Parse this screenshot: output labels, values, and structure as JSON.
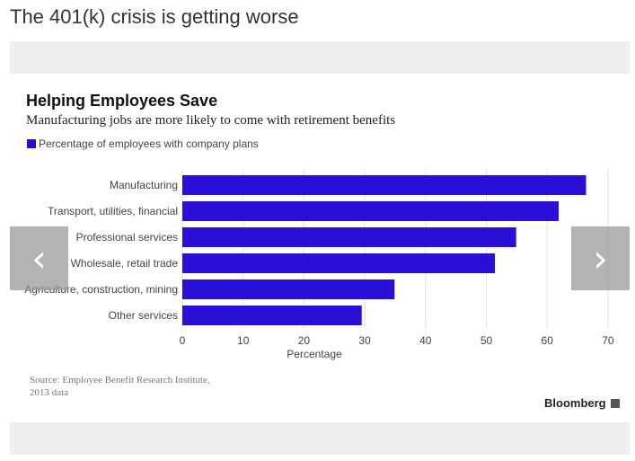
{
  "headline": "The 401(k) crisis is getting worse",
  "nav": {
    "prev_glyph": "‹",
    "next_glyph": "›"
  },
  "source": "Source: Employee Benefit Research Institute,\n2013 data",
  "brand": {
    "name": "Bloomberg"
  },
  "colors": {
    "bar": "#2a0fd6",
    "grid": "#e3e3e3",
    "band": "#efefef"
  },
  "chart_data": {
    "type": "bar",
    "orientation": "horizontal",
    "title": "Helping Employees Save",
    "subtitle": "Manufacturing jobs are more likely to come with retirement benefits",
    "xlabel": "Percentage",
    "ylabel": "",
    "xlim": [
      0,
      70
    ],
    "xticks": [
      0,
      10,
      20,
      30,
      40,
      50,
      60,
      70
    ],
    "grid": true,
    "legend_position": "top-left",
    "categories": [
      "Manufacturing",
      "Transport, utilities, financial",
      "Professional services",
      "Wholesale, retail trade",
      "Agriculture, construction, mining",
      "Other services"
    ],
    "series": [
      {
        "name": "Percentage of employees with company plans",
        "color": "#2a0fd6",
        "values": [
          66.4,
          61.9,
          54.9,
          51.4,
          34.9,
          29.5
        ]
      }
    ]
  }
}
